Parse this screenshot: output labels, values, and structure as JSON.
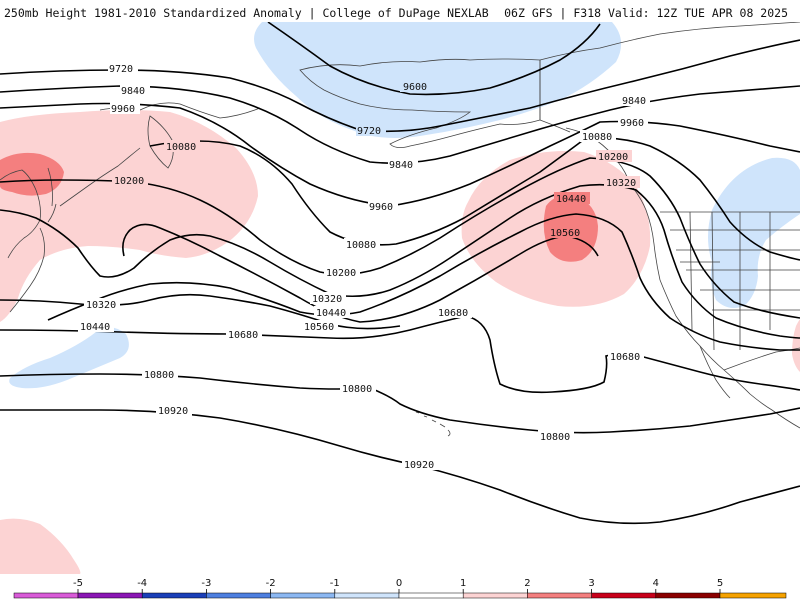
{
  "header": {
    "left": "250mb Height 1981-2010 Standardized Anomaly | College of DuPage NEXLAB",
    "right": "06Z GFS | F318 Valid: 12Z TUE APR 08 2025"
  },
  "legend": {
    "ticks": [
      "-5",
      "-4",
      "-3",
      "-2",
      "-1",
      "0",
      "1",
      "2",
      "3",
      "4",
      "5"
    ],
    "colors": [
      "#d95bd8",
      "#8a16b4",
      "#1a3fb8",
      "#4d7fe0",
      "#8cb8f2",
      "#cfe4fb",
      "#ffffff",
      "#fcd3d3",
      "#f47f7f",
      "#c8001a",
      "#8a0000",
      "#f6a200",
      "#f8c600"
    ]
  },
  "colors": {
    "positive_anomaly_1": "#fcd3d3",
    "positive_anomaly_2": "#f47f7f",
    "negative_anomaly_1": "#cfe4fb",
    "contour": "#000000",
    "border": "#444444"
  },
  "contours": [
    {
      "label": "9600"
    },
    {
      "label": "9720"
    },
    {
      "label": "9840"
    },
    {
      "label": "9960"
    },
    {
      "label": "10080"
    },
    {
      "label": "10200"
    },
    {
      "label": "10320"
    },
    {
      "label": "10440"
    },
    {
      "label": "10560"
    },
    {
      "label": "10680"
    },
    {
      "label": "10800"
    },
    {
      "label": "10920"
    }
  ]
}
